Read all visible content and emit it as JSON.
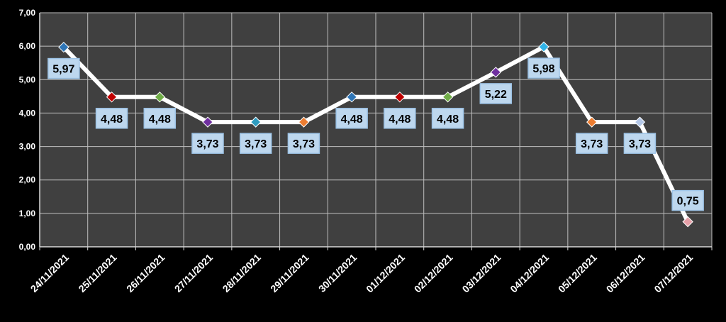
{
  "chart_data": {
    "type": "line",
    "categories": [
      "24/11/2021",
      "25/11/2021",
      "26/11/2021",
      "27/11/2021",
      "28/11/2021",
      "29/11/2021",
      "30/11/2021",
      "01/12/2021",
      "02/12/2021",
      "03/12/2021",
      "04/12/2021",
      "05/12/2021",
      "06/12/2021",
      "07/12/2021"
    ],
    "values": [
      5.97,
      4.48,
      4.48,
      3.73,
      3.73,
      3.73,
      4.48,
      4.48,
      4.48,
      5.22,
      5.98,
      3.73,
      3.73,
      0.75
    ],
    "data_labels": [
      "5,97",
      "4,48",
      "4,48",
      "3,73",
      "3,73",
      "3,73",
      "4,48",
      "4,48",
      "4,48",
      "5,22",
      "5,98",
      "3,73",
      "3,73",
      "0,75"
    ],
    "y_ticks": [
      "0,00",
      "1,00",
      "2,00",
      "3,00",
      "4,00",
      "5,00",
      "6,00",
      "7,00"
    ],
    "ylim": [
      0,
      7
    ],
    "grid": true,
    "title": "",
    "xlabel": "",
    "ylabel": "",
    "colors": {
      "background": "#000000",
      "plot_area": "#404040",
      "grid": "#bfbfbf",
      "line": "#ffffff",
      "label_fill": "#bdd7ee",
      "label_border": "#9dc3e6",
      "marker_colors": [
        "#2e75b6",
        "#c00000",
        "#70ad47",
        "#7030a0",
        "#2e9bbf",
        "#ed7d31",
        "#2e75b6",
        "#c00000",
        "#70ad47",
        "#7030a0",
        "#31b4e8",
        "#ed7d31",
        "#b4c7e7",
        "#e6a0a8"
      ]
    }
  }
}
